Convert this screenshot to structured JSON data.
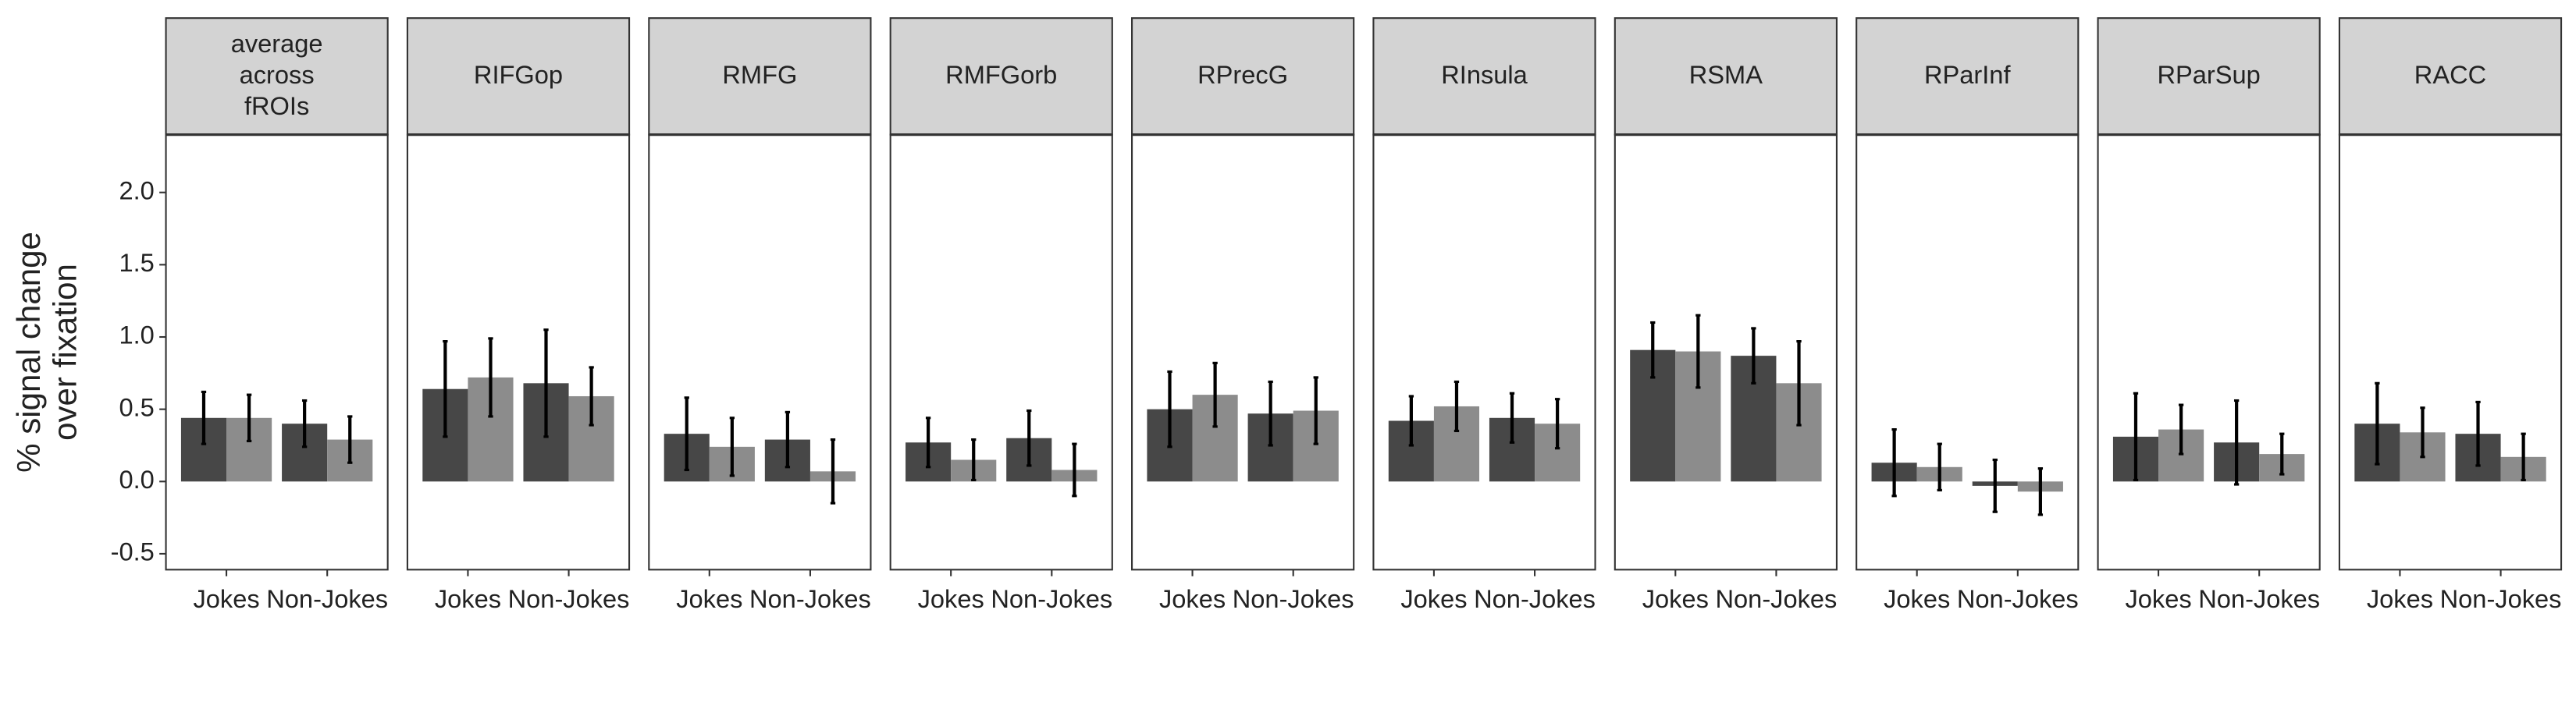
{
  "chart_data": [
    {
      "type": "bar",
      "title": "average\nacross\nfROIs",
      "ylabel": "% signal change\nover fixation",
      "categories": [
        "Jokes",
        "Non-Jokes"
      ],
      "series": [
        {
          "color": "#474747",
          "values": [
            0.44,
            0.4
          ],
          "errors": [
            0.18,
            0.16
          ]
        },
        {
          "color": "#8c8c8c",
          "values": [
            0.44,
            0.29
          ],
          "errors": [
            0.16,
            0.16
          ]
        }
      ],
      "ylim": [
        -0.61,
        2.4
      ],
      "yticks": [
        {
          "value": -0.5,
          "label": "-0.5"
        },
        {
          "value": 0,
          "label": "0.0"
        },
        {
          "value": 0.5,
          "label": "0.5"
        },
        {
          "value": 1,
          "label": "1.0"
        },
        {
          "value": 1.5,
          "label": "1.5"
        },
        {
          "value": 2,
          "label": "2.0"
        }
      ]
    },
    {
      "type": "bar",
      "title": "RIFGop",
      "categories": [
        "Jokes",
        "Non-Jokes"
      ],
      "series": [
        {
          "color": "#474747",
          "values": [
            0.64,
            0.68
          ],
          "errors": [
            0.33,
            0.37
          ]
        },
        {
          "color": "#8c8c8c",
          "values": [
            0.72,
            0.59
          ],
          "errors": [
            0.27,
            0.2
          ]
        }
      ],
      "ylim": [
        -0.61,
        2.4
      ]
    },
    {
      "type": "bar",
      "title": "RMFG",
      "categories": [
        "Jokes",
        "Non-Jokes"
      ],
      "series": [
        {
          "color": "#474747",
          "values": [
            0.33,
            0.29
          ],
          "errors": [
            0.25,
            0.19
          ]
        },
        {
          "color": "#8c8c8c",
          "values": [
            0.24,
            0.07
          ],
          "errors": [
            0.2,
            0.22
          ]
        }
      ],
      "ylim": [
        -0.61,
        2.4
      ]
    },
    {
      "type": "bar",
      "title": "RMFGorb",
      "categories": [
        "Jokes",
        "Non-Jokes"
      ],
      "series": [
        {
          "color": "#474747",
          "values": [
            0.27,
            0.3
          ],
          "errors": [
            0.17,
            0.19
          ]
        },
        {
          "color": "#8c8c8c",
          "values": [
            0.15,
            0.08
          ],
          "errors": [
            0.14,
            0.18
          ]
        }
      ],
      "ylim": [
        -0.61,
        2.4
      ]
    },
    {
      "type": "bar",
      "title": "RPrecG",
      "categories": [
        "Jokes",
        "Non-Jokes"
      ],
      "series": [
        {
          "color": "#474747",
          "values": [
            0.5,
            0.47
          ],
          "errors": [
            0.26,
            0.22
          ]
        },
        {
          "color": "#8c8c8c",
          "values": [
            0.6,
            0.49
          ],
          "errors": [
            0.22,
            0.23
          ]
        }
      ],
      "ylim": [
        -0.61,
        2.4
      ]
    },
    {
      "type": "bar",
      "title": "RInsula",
      "categories": [
        "Jokes",
        "Non-Jokes"
      ],
      "series": [
        {
          "color": "#474747",
          "values": [
            0.42,
            0.44
          ],
          "errors": [
            0.17,
            0.17
          ]
        },
        {
          "color": "#8c8c8c",
          "values": [
            0.52,
            0.4
          ],
          "errors": [
            0.17,
            0.17
          ]
        }
      ],
      "ylim": [
        -0.61,
        2.4
      ]
    },
    {
      "type": "bar",
      "title": "RSMA",
      "categories": [
        "Jokes",
        "Non-Jokes"
      ],
      "series": [
        {
          "color": "#474747",
          "values": [
            0.91,
            0.87
          ],
          "errors": [
            0.19,
            0.19
          ]
        },
        {
          "color": "#8c8c8c",
          "values": [
            0.9,
            0.68
          ],
          "errors": [
            0.25,
            0.29
          ]
        }
      ],
      "ylim": [
        -0.61,
        2.4
      ]
    },
    {
      "type": "bar",
      "title": "RParInf",
      "categories": [
        "Jokes",
        "Non-Jokes"
      ],
      "series": [
        {
          "color": "#474747",
          "values": [
            0.13,
            -0.03
          ],
          "errors": [
            0.23,
            0.18
          ]
        },
        {
          "color": "#8c8c8c",
          "values": [
            0.1,
            -0.07
          ],
          "errors": [
            0.16,
            0.16
          ]
        }
      ],
      "ylim": [
        -0.61,
        2.4
      ]
    },
    {
      "type": "bar",
      "title": "RParSup",
      "categories": [
        "Jokes",
        "Non-Jokes"
      ],
      "series": [
        {
          "color": "#474747",
          "values": [
            0.31,
            0.27
          ],
          "errors": [
            0.3,
            0.29
          ]
        },
        {
          "color": "#8c8c8c",
          "values": [
            0.36,
            0.19
          ],
          "errors": [
            0.17,
            0.14
          ]
        }
      ],
      "ylim": [
        -0.61,
        2.4
      ]
    },
    {
      "type": "bar",
      "title": "RACC",
      "categories": [
        "Jokes",
        "Non-Jokes"
      ],
      "series": [
        {
          "color": "#474747",
          "values": [
            0.4,
            0.33
          ],
          "errors": [
            0.28,
            0.22
          ]
        },
        {
          "color": "#8c8c8c",
          "values": [
            0.34,
            0.17
          ],
          "errors": [
            0.17,
            0.16
          ]
        }
      ],
      "ylim": [
        -0.61,
        2.4
      ]
    }
  ]
}
